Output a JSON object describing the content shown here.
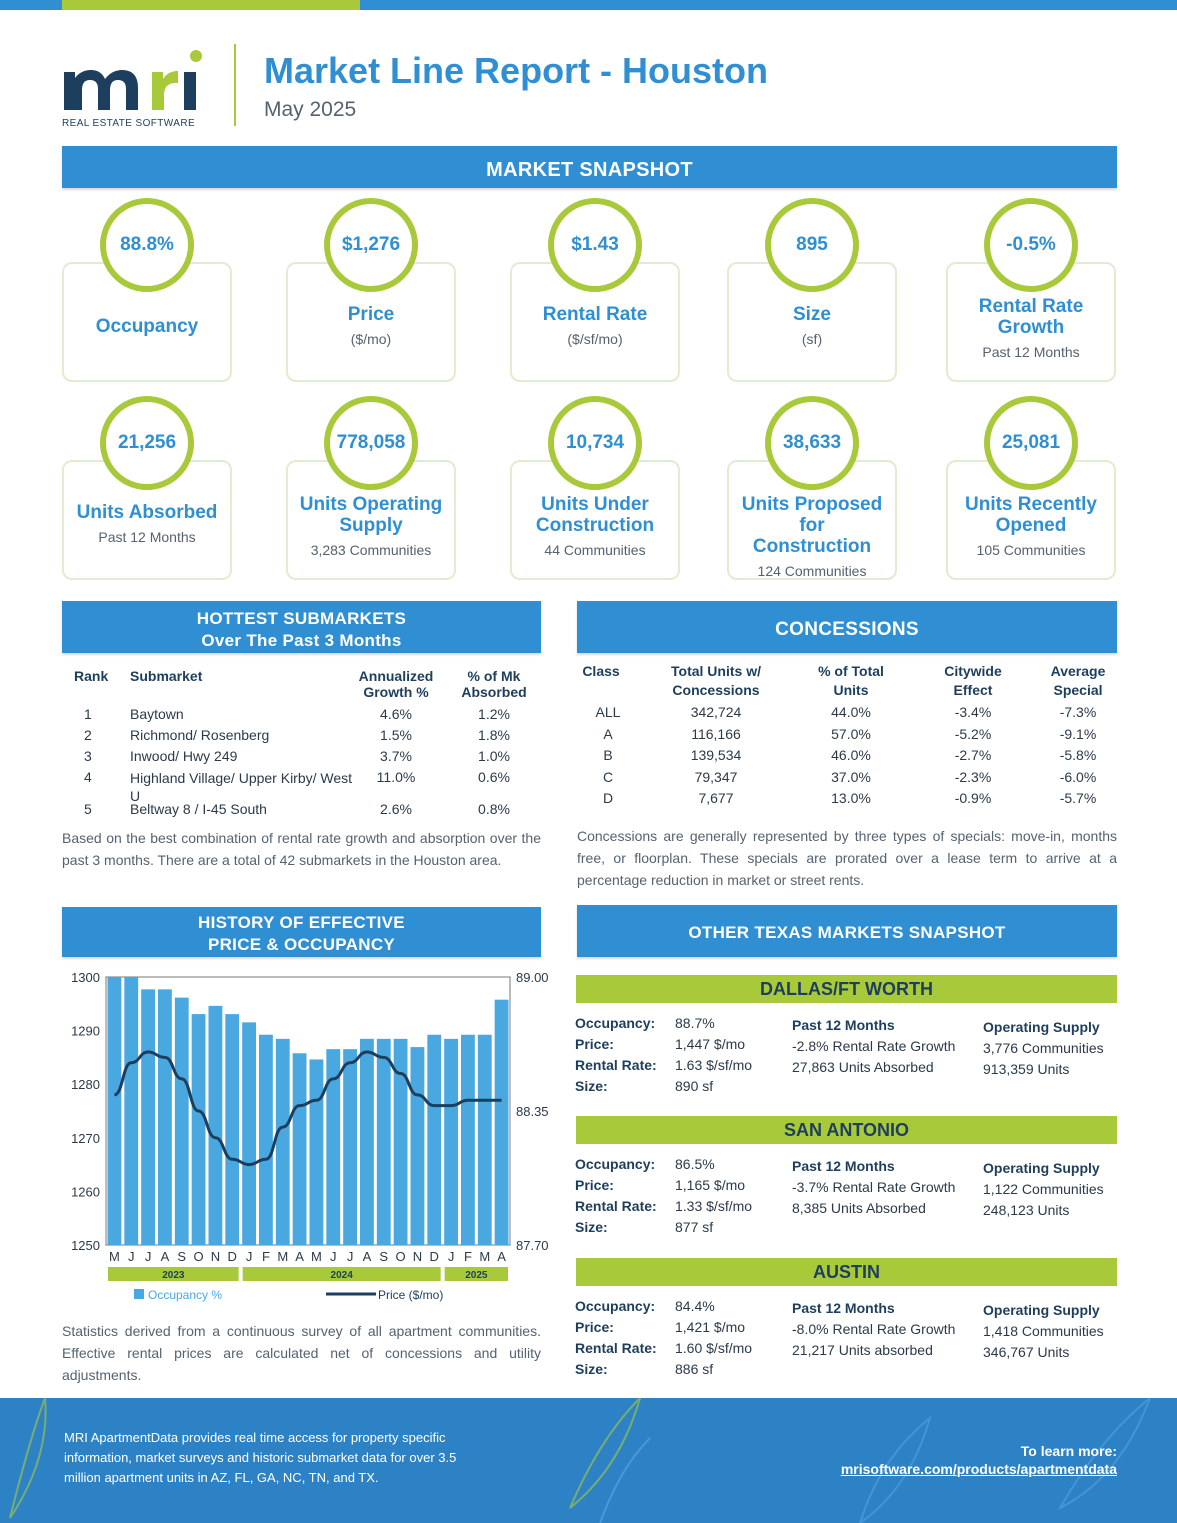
{
  "header": {
    "logo_text": "mri",
    "logo_sub": "REAL ESTATE SOFTWARE",
    "title": "Market Line Report - Houston",
    "date": "May 2025"
  },
  "snapshot_title": "MARKET SNAPSHOT",
  "cards": [
    {
      "value": "88.8%",
      "label": "Occupancy",
      "sub": ""
    },
    {
      "value": "$1,276",
      "label": "Price",
      "sub": "($/mo)"
    },
    {
      "value": "$1.43",
      "label": "Rental Rate",
      "sub": "($/sf/mo)"
    },
    {
      "value": "895",
      "label": "Size",
      "sub": "(sf)"
    },
    {
      "value": "-0.5%",
      "label": "Rental Rate Growth",
      "sub": "Past 12 Months"
    },
    {
      "value": "21,256",
      "label": "Units Absorbed",
      "sub": "Past 12 Months"
    },
    {
      "value": "778,058",
      "label": "Units Operating Supply",
      "sub": "3,283 Communities"
    },
    {
      "value": "10,734",
      "label": "Units Under Construction",
      "sub": "44 Communities"
    },
    {
      "value": "38,633",
      "label": "Units Proposed for Construction",
      "sub": "124 Communities"
    },
    {
      "value": "25,081",
      "label": "Units Recently Opened",
      "sub": "105 Communities"
    }
  ],
  "hottest": {
    "title1": "HOTTEST SUBMARKETS",
    "title2": "Over The Past 3 Months",
    "headers": [
      "Rank",
      "Submarket",
      "Annualized Growth %",
      "% of Mk Absorbed"
    ],
    "rows": [
      [
        "1",
        "Baytown",
        "4.6%",
        "1.2%"
      ],
      [
        "2",
        "Richmond/ Rosenberg",
        "1.5%",
        "1.8%"
      ],
      [
        "3",
        "Inwood/ Hwy 249",
        "3.7%",
        "1.0%"
      ],
      [
        "4",
        "Highland Village/ Upper Kirby/ West U",
        "11.0%",
        "0.6%"
      ],
      [
        "5",
        "Beltway 8 / I-45 South",
        "2.6%",
        "0.8%"
      ]
    ],
    "note": "Based on the best combination of rental rate growth and absorption over the past 3 months. There are a total of 42 submarkets in the Houston area."
  },
  "concessions": {
    "title": "CONCESSIONS",
    "headers": [
      "Class",
      "Total Units w/ Concessions",
      "% of Total Units",
      "Citywide Effect",
      "Average Special"
    ],
    "rows": [
      [
        "ALL",
        "342,724",
        "44.0%",
        "-3.4%",
        "-7.3%"
      ],
      [
        "A",
        "116,166",
        "57.0%",
        "-5.2%",
        "-9.1%"
      ],
      [
        "B",
        "139,534",
        "46.0%",
        "-2.7%",
        "-5.8%"
      ],
      [
        "C",
        "79,347",
        "37.0%",
        "-2.3%",
        "-6.0%"
      ],
      [
        "D",
        "7,677",
        "13.0%",
        "-0.9%",
        "-5.7%"
      ]
    ],
    "note": "Concessions are generally represented by three types of specials: move-in, months free, or floorplan. These specials are prorated over a lease term to arrive at a percentage reduction in market or street rents."
  },
  "history": {
    "title1": "HISTORY OF EFFECTIVE",
    "title2": "PRICE & OCCUPANCY",
    "note": "Statistics derived from a continuous survey of all apartment communities. Effective rental prices are calculated net of concessions and utility adjustments."
  },
  "chart_data": {
    "type": "bar",
    "title": "History of Effective Price & Occupancy",
    "categories": [
      "M",
      "J",
      "J",
      "A",
      "S",
      "O",
      "N",
      "D",
      "J",
      "F",
      "M",
      "A",
      "M",
      "J",
      "J",
      "A",
      "S",
      "O",
      "N",
      "D",
      "J",
      "F",
      "M",
      "A"
    ],
    "years": [
      {
        "label": "2023",
        "from": 0,
        "to": 7
      },
      {
        "label": "2024",
        "from": 8,
        "to": 19
      },
      {
        "label": "2025",
        "from": 20,
        "to": 23
      }
    ],
    "left_axis": {
      "ylim": [
        1250,
        1300
      ],
      "ticks": [
        "1300",
        "1290",
        "1280",
        "1270",
        "1260",
        "1250"
      ]
    },
    "right_axis": {
      "ylim": [
        87.7,
        89.0
      ],
      "ticks": [
        "89.00",
        "88.35",
        "87.70"
      ]
    },
    "series": [
      {
        "name": "Occupancy %",
        "type": "bar",
        "axis": "right",
        "color": "#4aa8e0",
        "values": [
          89.0,
          89.0,
          88.94,
          88.94,
          88.9,
          88.82,
          88.86,
          88.82,
          88.78,
          88.72,
          88.7,
          88.63,
          88.6,
          88.65,
          88.65,
          88.7,
          88.7,
          88.7,
          88.66,
          88.72,
          88.7,
          88.72,
          88.72,
          88.89
        ]
      },
      {
        "name": "Price ($/mo)",
        "type": "line",
        "axis": "left",
        "color": "#1d3e5c",
        "values": [
          1278,
          1284,
          1286,
          1285,
          1281,
          1275,
          1270,
          1266,
          1265,
          1266,
          1272,
          1276,
          1277,
          1281,
          1284,
          1286,
          1285,
          1282,
          1278,
          1276,
          1276,
          1277,
          1277,
          1277
        ]
      }
    ]
  },
  "texas": {
    "title": "OTHER TEXAS MARKETS SNAPSHOT",
    "labels": {
      "occ": "Occupancy:",
      "price": "Price:",
      "rate": "Rental Rate:",
      "size": "Size:",
      "past": "Past 12 Months",
      "supply": "Operating Supply"
    },
    "markets": [
      {
        "name": "DALLAS/FT WORTH",
        "occ": "88.7%",
        "price": "1,447 $/mo",
        "rate": "1.63 $/sf/mo",
        "size": "890 sf",
        "growth": "-2.8% Rental Rate Growth",
        "absorbed": "27,863 Units Absorbed",
        "communities": "3,776 Communities",
        "units": "913,359 Units"
      },
      {
        "name": "SAN ANTONIO",
        "occ": "86.5%",
        "price": "1,165 $/mo",
        "rate": "1.33 $/sf/mo",
        "size": "877 sf",
        "growth": "-3.7% Rental Rate Growth",
        "absorbed": "8,385 Units Absorbed",
        "communities": "1,122 Communities",
        "units": "248,123 Units"
      },
      {
        "name": "AUSTIN",
        "occ": "84.4%",
        "price": "1,421 $/mo",
        "rate": "1.60 $/sf/mo",
        "size": "886 sf",
        "growth": "-8.0% Rental Rate Growth",
        "absorbed": "21,217 Units absorbed",
        "communities": "1,418 Communities",
        "units": "346,767 Units"
      }
    ]
  },
  "footer": {
    "text": "MRI ApartmentData provides real time access for property specific information, market surveys and historic submarket data for over 3.5 million apartment units in AZ, FL, GA, NC, TN, and TX.",
    "learn": "To learn more:",
    "link": "mrisoftware.com/products/apartmentdata"
  }
}
